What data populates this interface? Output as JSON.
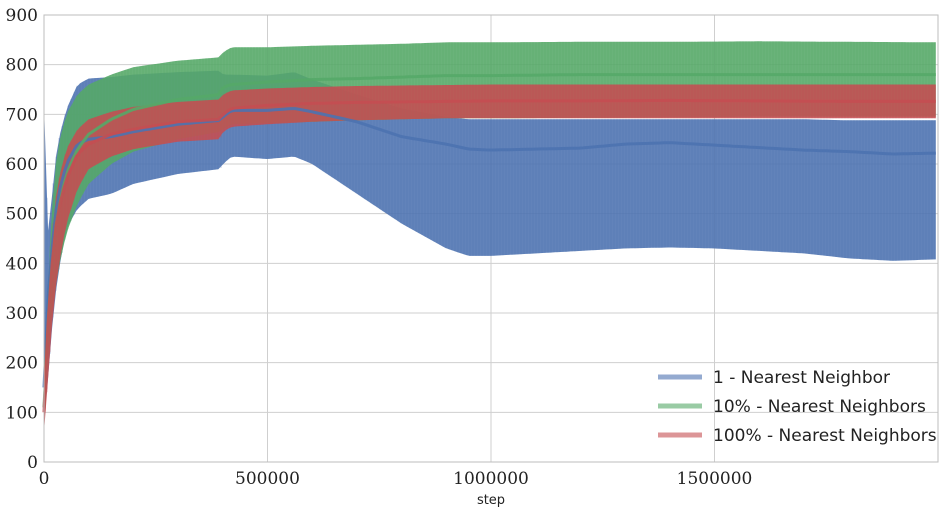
{
  "chart_data": {
    "type": "line",
    "title": "",
    "xlabel": "step",
    "ylabel": "",
    "xlim": [
      0,
      2000000
    ],
    "ylim": [
      0,
      900
    ],
    "xticks": [
      0,
      500000,
      1000000,
      1500000
    ],
    "xtick_labels": [
      "0",
      "500000",
      "1000000",
      "1500000"
    ],
    "yticks": [
      0,
      100,
      200,
      300,
      400,
      500,
      600,
      700,
      800,
      900
    ],
    "ytick_labels": [
      "0",
      "100",
      "200",
      "300",
      "400",
      "500",
      "600",
      "700",
      "800",
      "900"
    ],
    "grid": true,
    "legend_position": "bottom-right",
    "series": [
      {
        "name": "1 - Nearest Neighbor",
        "color": "#4c72b0",
        "x": [
          0,
          10000,
          20000,
          30000,
          50000,
          75000,
          100000,
          150000,
          200000,
          300000,
          395000,
          400000,
          420000,
          500000,
          560000,
          600000,
          700000,
          800000,
          900000,
          950000,
          1000000,
          1100000,
          1200000,
          1300000,
          1400000,
          1500000,
          1600000,
          1700000,
          1800000,
          1900000,
          1995000
        ],
        "mean": [
          150,
          350,
          450,
          530,
          600,
          640,
          650,
          655,
          665,
          680,
          688,
          695,
          708,
          708,
          712,
          705,
          685,
          655,
          640,
          630,
          628,
          630,
          632,
          640,
          643,
          638,
          633,
          628,
          625,
          620,
          622
        ],
        "upper": [
          720,
          440,
          560,
          640,
          710,
          760,
          772,
          775,
          780,
          785,
          788,
          780,
          780,
          778,
          785,
          770,
          740,
          712,
          695,
          690,
          690,
          690,
          690,
          690,
          690,
          690,
          690,
          690,
          688,
          688,
          688
        ],
        "lower": [
          80,
          180,
          290,
          370,
          470,
          510,
          530,
          540,
          560,
          580,
          590,
          600,
          615,
          610,
          615,
          600,
          540,
          480,
          430,
          415,
          415,
          420,
          425,
          430,
          432,
          430,
          425,
          420,
          410,
          405,
          408
        ]
      },
      {
        "name": "10% - Nearest Neighbors",
        "color": "#55a868",
        "x": [
          0,
          10000,
          20000,
          30000,
          50000,
          75000,
          100000,
          150000,
          200000,
          300000,
          395000,
          400000,
          420000,
          500000,
          600000,
          700000,
          800000,
          900000,
          1000000,
          1200000,
          1400000,
          1600000,
          1800000,
          1995000
        ],
        "mean": [
          110,
          300,
          420,
          500,
          580,
          630,
          660,
          690,
          710,
          730,
          740,
          755,
          760,
          765,
          770,
          772,
          775,
          778,
          778,
          780,
          780,
          780,
          780,
          780
        ],
        "upper": [
          140,
          380,
          540,
          630,
          700,
          740,
          760,
          780,
          795,
          808,
          815,
          825,
          835,
          835,
          838,
          840,
          842,
          845,
          845,
          846,
          846,
          847,
          846,
          845
        ],
        "lower": [
          90,
          220,
          310,
          380,
          460,
          520,
          560,
          600,
          625,
          650,
          665,
          670,
          680,
          682,
          685,
          688,
          690,
          692,
          692,
          693,
          694,
          695,
          695,
          695
        ]
      },
      {
        "name": "100% - Nearest Neighbors",
        "color": "#c44e52",
        "x": [
          0,
          10000,
          20000,
          30000,
          50000,
          75000,
          100000,
          150000,
          200000,
          300000,
          395000,
          400000,
          420000,
          500000,
          600000,
          700000,
          800000,
          900000,
          1000000,
          1200000,
          1400000,
          1600000,
          1800000,
          1995000
        ],
        "mean": [
          100,
          300,
          420,
          500,
          570,
          620,
          640,
          660,
          670,
          685,
          690,
          700,
          712,
          718,
          722,
          724,
          725,
          726,
          727,
          727,
          728,
          727,
          726,
          726
        ],
        "upper": [
          130,
          360,
          480,
          560,
          630,
          670,
          690,
          705,
          715,
          725,
          730,
          740,
          748,
          752,
          755,
          757,
          758,
          759,
          760,
          760,
          760,
          760,
          760,
          760
        ],
        "lower": [
          60,
          180,
          300,
          380,
          480,
          550,
          590,
          615,
          630,
          645,
          650,
          665,
          675,
          680,
          685,
          688,
          690,
          692,
          692,
          692,
          692,
          692,
          692,
          692
        ]
      }
    ]
  }
}
